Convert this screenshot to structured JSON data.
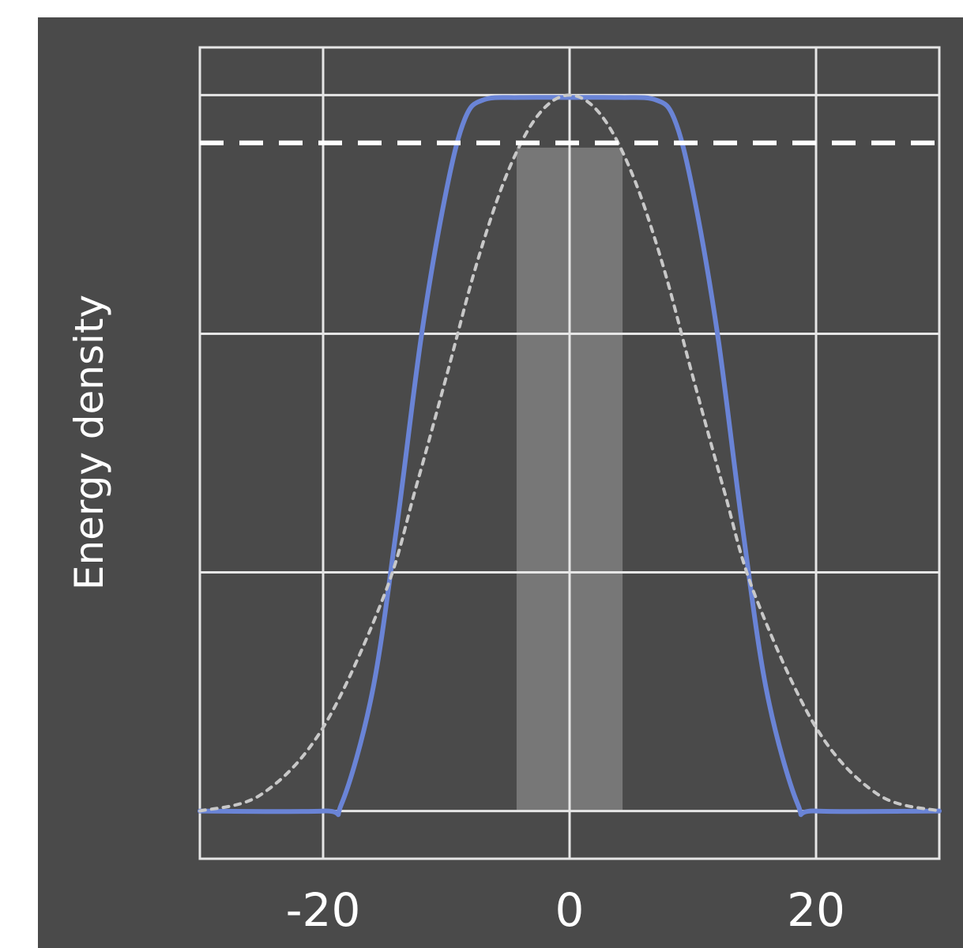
{
  "chart_data": {
    "type": "line",
    "title": "",
    "xlabel": "",
    "ylabel": "Energy density",
    "xlim": [
      -30,
      30
    ],
    "ylim": [
      -0.2,
      3.2
    ],
    "x_ticks": [
      -20,
      0,
      20
    ],
    "x_tick_labels": [
      "-20",
      "0",
      "20"
    ],
    "y_grid": [
      0,
      1,
      2,
      3
    ],
    "grid": true,
    "legend": "none",
    "colors": {
      "background": "#4a4a4a",
      "grid": "#e6e6e6",
      "solid_curve": "#6a84d6",
      "dotted_curve": "#c8c8c8",
      "dashed_threshold": "#ffffff",
      "shaded_band": "#777777"
    },
    "series": [
      {
        "style": "solid",
        "x": [
          -30,
          -20,
          -18.5,
          -16,
          -14,
          -12,
          -10,
          -8.5,
          -7,
          -4,
          0,
          4,
          7,
          8.5,
          10,
          12,
          14,
          16,
          18.5,
          20,
          30
        ],
        "values": [
          0,
          0,
          0.03,
          0.5,
          1.2,
          2.0,
          2.6,
          2.9,
          2.98,
          2.99,
          2.99,
          2.99,
          2.98,
          2.9,
          2.6,
          2.0,
          1.2,
          0.5,
          0.03,
          0,
          0
        ]
      },
      {
        "style": "dotted",
        "x": [
          -30,
          -25,
          -20,
          -15,
          -12.5,
          -10,
          -7.5,
          -5,
          -2.5,
          0,
          2.5,
          5,
          7.5,
          10,
          12.5,
          15,
          20,
          25,
          30
        ],
        "values": [
          0,
          0.07,
          0.35,
          0.91,
          1.35,
          1.82,
          2.3,
          2.68,
          2.92,
          3.0,
          2.92,
          2.68,
          2.3,
          1.82,
          1.35,
          0.91,
          0.35,
          0.07,
          0
        ]
      }
    ],
    "threshold": {
      "style": "dashed",
      "y": 2.8
    },
    "shaded_band": {
      "x_start": -4.3,
      "x_end": 4.3,
      "y_start": 0,
      "y_end": 2.78
    }
  }
}
